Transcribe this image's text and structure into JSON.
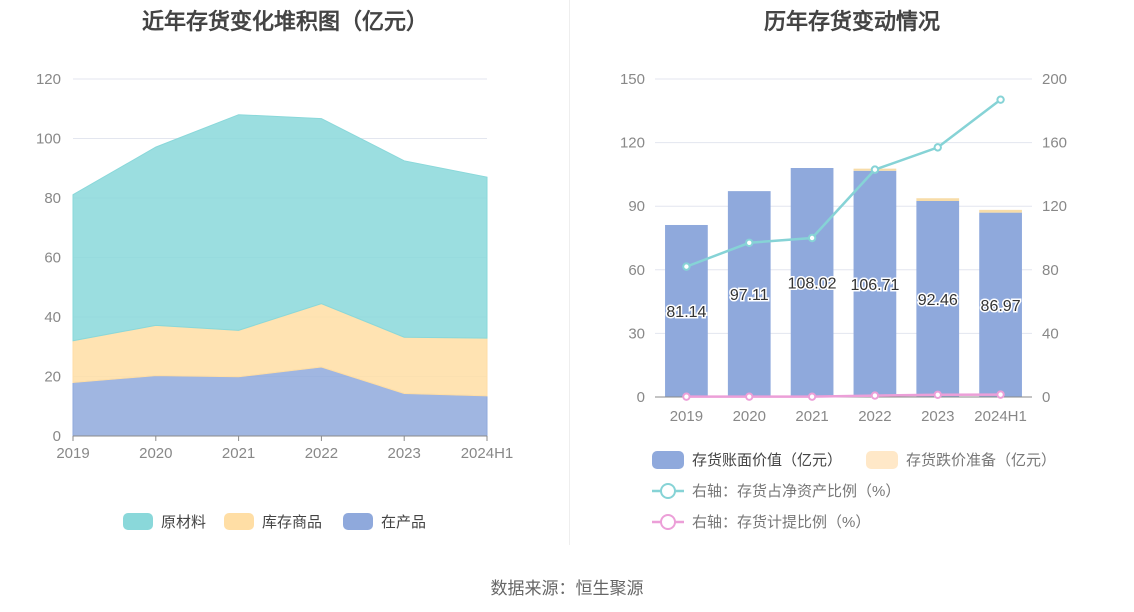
{
  "left_chart": {
    "title": "近年存货变化堆积图（亿元）",
    "chart_data": {
      "type": "area",
      "stacked": true,
      "categories": [
        "2019",
        "2020",
        "2021",
        "2022",
        "2023",
        "2024H1"
      ],
      "ylim": [
        0,
        120
      ],
      "yticks": [
        "0",
        "20",
        "40",
        "60",
        "80",
        "100",
        "120"
      ],
      "grid": true,
      "legend_position": "bottom",
      "series": [
        {
          "name": "在产品",
          "values": [
            18.0,
            20.3,
            19.9,
            23.2,
            14.3,
            13.5
          ],
          "color": "#8fa9dc"
        },
        {
          "name": "库存商品",
          "values": [
            14.0,
            16.9,
            15.6,
            21.3,
            18.9,
            19.4
          ],
          "color": "#ffdea5"
        },
        {
          "name": "原材料",
          "values": [
            49.1,
            59.9,
            72.5,
            62.2,
            59.3,
            54.1
          ],
          "color": "#8ad8da"
        }
      ]
    }
  },
  "right_chart": {
    "title": "历年存货变动情况",
    "chart_data": {
      "type": "bar",
      "categories": [
        "2019",
        "2020",
        "2021",
        "2022",
        "2023",
        "2024H1"
      ],
      "ylim": [
        0,
        150
      ],
      "yticks": [
        "0",
        "30",
        "60",
        "90",
        "120",
        "150"
      ],
      "y2lim": [
        0,
        200
      ],
      "y2ticks": [
        "0",
        "40",
        "80",
        "120",
        "160",
        "200"
      ],
      "grid": true,
      "legend_position": "bottom",
      "bar_labels": [
        "81.14",
        "97.11",
        "108.02",
        "106.71",
        "92.46",
        "86.97"
      ],
      "series": [
        {
          "name": "存货账面价值（亿元）",
          "type": "bar",
          "axis": "left",
          "values": [
            81.14,
            97.11,
            108.02,
            106.71,
            92.46,
            86.97
          ],
          "color": "#8fa9dc"
        },
        {
          "name": "存货跌价准备（亿元）",
          "type": "bar",
          "axis": "left",
          "values": [
            0.0,
            0.0,
            0.0,
            1.0,
            1.3,
            1.3
          ],
          "color": "#ffe8c8"
        },
        {
          "name": "右轴：存货占净资产比例（%）",
          "type": "line",
          "axis": "right",
          "values": [
            82,
            97,
            100,
            143,
            157,
            187
          ],
          "color": "#86d3d6"
        },
        {
          "name": "右轴：存货计提比例（%）",
          "type": "line",
          "axis": "right",
          "values": [
            0.2,
            0.2,
            0.2,
            0.9,
            1.4,
            1.5
          ],
          "color": "#ec9fd8"
        }
      ]
    }
  },
  "footer": {
    "source": "数据来源：恒生聚源"
  }
}
